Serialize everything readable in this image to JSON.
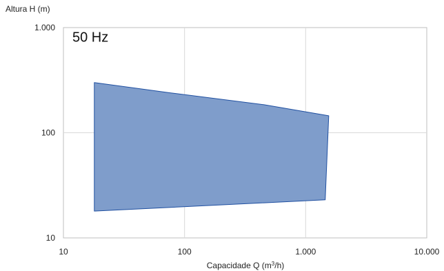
{
  "chart_data": {
    "type": "area",
    "annotation": "50 Hz",
    "xlabel": "Capacidade  Q (m",
    "xlabel_sup": "3",
    "xlabel_end": "/h)",
    "ylabel": "Altura H (m)",
    "x_scale": "log",
    "y_scale": "log",
    "xlim": [
      10,
      10000
    ],
    "ylim": [
      10,
      1000
    ],
    "x_ticks": [
      {
        "value": 10,
        "label": "10"
      },
      {
        "value": 100,
        "label": "100"
      },
      {
        "value": 1000,
        "label": "1.000"
      },
      {
        "value": 10000,
        "label": "10.000"
      }
    ],
    "y_ticks": [
      {
        "value": 10,
        "label": "10"
      },
      {
        "value": 100,
        "label": "100"
      },
      {
        "value": 1000,
        "label": "1.000"
      }
    ],
    "grid": true,
    "fill_color": "#7f9dcb",
    "edge_color": "#1f4fa0",
    "envelope": [
      {
        "x": 18,
        "y": 300
      },
      {
        "x": 75,
        "y": 240
      },
      {
        "x": 450,
        "y": 185
      },
      {
        "x": 1550,
        "y": 145
      },
      {
        "x": 1450,
        "y": 23
      },
      {
        "x": 18,
        "y": 18
      }
    ]
  }
}
